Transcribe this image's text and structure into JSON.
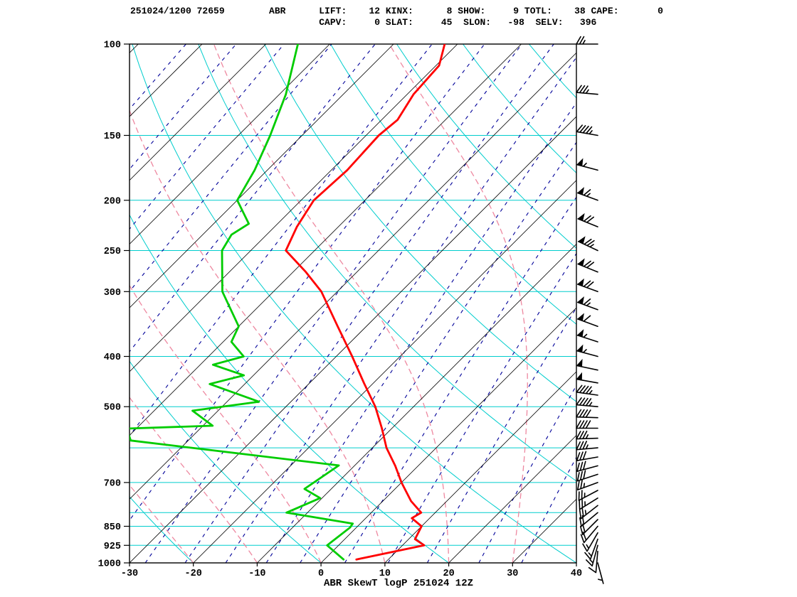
{
  "header": {
    "line1": "251024/1200 72659        ABR      LIFT:    12 KINX:      8 SHOW:     9 TOTL:    38 CAPE:       0",
    "line2": "                                  CAPV:     0 SLAT:     45  SLON:   -98  SELV:   396",
    "fields": {
      "datetime": "251024/1200",
      "station_number": "72659",
      "station_id": "ABR",
      "LIFT": 12,
      "KINX": 8,
      "SHOW": 9,
      "TOTL": 38,
      "CAPE": 0,
      "CAPV": 0,
      "SLAT": 45,
      "SLON": -98,
      "SELV": 396
    }
  },
  "footer": {
    "title": "ABR SkewT logP 251024 12Z"
  },
  "chart_data": {
    "type": "skewt-logp",
    "station": "ABR",
    "valid": "251024 12Z",
    "pressure_axis": {
      "unit": "hPa",
      "scale": "log",
      "min": 100,
      "max": 1000,
      "ticks": [
        100,
        150,
        200,
        250,
        300,
        400,
        500,
        700,
        850,
        925,
        1000
      ]
    },
    "temp_axis": {
      "unit": "degC",
      "min": -30,
      "max": 40,
      "skew_deg": 45,
      "ticks": [
        -30,
        -20,
        -10,
        0,
        10,
        20,
        30,
        40
      ]
    },
    "grid": {
      "isobar_lines": [
        100,
        150,
        200,
        250,
        300,
        400,
        500,
        600,
        700,
        800,
        850,
        925,
        1000
      ],
      "isotherms_c": {
        "min": -120,
        "max": 40,
        "step": 10
      },
      "dry_adiabats_theta_c": {
        "min": -20,
        "max": 180,
        "step": 20
      },
      "moist_adiabats_start_c": {
        "min": -60,
        "max": 40,
        "step": 10
      },
      "mixing_ratio_gkg": [
        0.0001,
        0.0005,
        0.002,
        0.007,
        0.02,
        0.07,
        0.2,
        0.4,
        0.7,
        1.2,
        2,
        3,
        5,
        8,
        12,
        20,
        30
      ],
      "colors": {
        "isobar": "#00cdcd",
        "isotherm": "#000000",
        "dry_adiabat": "#00cdcd",
        "moist_adiabat": "#ee88a0",
        "mixing_ratio": "#000099",
        "frame": "#000000",
        "labels": "#000000"
      }
    },
    "temperature_curve": {
      "color": "#ff0000",
      "points": [
        [
          985,
          5.0
        ],
        [
          925,
          13.4
        ],
        [
          900,
          11.0
        ],
        [
          850,
          10.0
        ],
        [
          820,
          7.2
        ],
        [
          800,
          7.8
        ],
        [
          760,
          4.4
        ],
        [
          700,
          0.0
        ],
        [
          650,
          -3.6
        ],
        [
          600,
          -7.8
        ],
        [
          550,
          -11.6
        ],
        [
          500,
          -16.0
        ],
        [
          450,
          -21.5
        ],
        [
          400,
          -27.5
        ],
        [
          350,
          -34.5
        ],
        [
          300,
          -42.5
        ],
        [
          275,
          -48.0
        ],
        [
          250,
          -54.5
        ],
        [
          225,
          -56.5
        ],
        [
          200,
          -58.0
        ],
        [
          175,
          -57.5
        ],
        [
          150,
          -58.0
        ],
        [
          140,
          -57.5
        ],
        [
          125,
          -59.0
        ],
        [
          110,
          -59.5
        ],
        [
          100,
          -62.0
        ]
      ]
    },
    "dewpoint_curve": {
      "color": "#00cc00",
      "points": [
        [
          985,
          3.0
        ],
        [
          925,
          -1.8
        ],
        [
          855,
          -1.0
        ],
        [
          840,
          -1.2
        ],
        [
          800,
          -13.3
        ],
        [
          750,
          -10.3
        ],
        [
          720,
          -14.2
        ],
        [
          649,
          -12.5
        ],
        [
          581,
          -49.0
        ],
        [
          551,
          -51.5
        ],
        [
          544,
          -38.5
        ],
        [
          509,
          -44.0
        ],
        [
          489,
          -35.0
        ],
        [
          452,
          -45.5
        ],
        [
          435,
          -41.5
        ],
        [
          415,
          -48.0
        ],
        [
          400,
          -44.5
        ],
        [
          375,
          -48.7
        ],
        [
          350,
          -50.0
        ],
        [
          300,
          -58.0
        ],
        [
          250,
          -64.5
        ],
        [
          233,
          -65.5
        ],
        [
          222,
          -64.5
        ],
        [
          200,
          -70.0
        ],
        [
          175,
          -72.0
        ],
        [
          150,
          -75.0
        ],
        [
          125,
          -79.0
        ],
        [
          100,
          -85.0
        ]
      ]
    },
    "wind_barbs": {
      "color": "#000000",
      "units": "kt",
      "levels": [
        {
          "p": 1000,
          "dir": 165,
          "spd": 5
        },
        {
          "p": 950,
          "dir": 185,
          "spd": 10
        },
        {
          "p": 925,
          "dir": 195,
          "spd": 15
        },
        {
          "p": 900,
          "dir": 200,
          "spd": 15
        },
        {
          "p": 875,
          "dir": 210,
          "spd": 15
        },
        {
          "p": 850,
          "dir": 220,
          "spd": 20
        },
        {
          "p": 825,
          "dir": 225,
          "spd": 20
        },
        {
          "p": 800,
          "dir": 230,
          "spd": 20
        },
        {
          "p": 775,
          "dir": 232,
          "spd": 25
        },
        {
          "p": 750,
          "dir": 238,
          "spd": 25
        },
        {
          "p": 725,
          "dir": 242,
          "spd": 25
        },
        {
          "p": 700,
          "dir": 250,
          "spd": 25
        },
        {
          "p": 675,
          "dir": 252,
          "spd": 30
        },
        {
          "p": 650,
          "dir": 255,
          "spd": 30
        },
        {
          "p": 625,
          "dir": 260,
          "spd": 30
        },
        {
          "p": 600,
          "dir": 265,
          "spd": 35
        },
        {
          "p": 575,
          "dir": 268,
          "spd": 35
        },
        {
          "p": 550,
          "dir": 270,
          "spd": 40
        },
        {
          "p": 525,
          "dir": 272,
          "spd": 40
        },
        {
          "p": 500,
          "dir": 275,
          "spd": 45
        },
        {
          "p": 475,
          "dir": 278,
          "spd": 45
        },
        {
          "p": 450,
          "dir": 280,
          "spd": 50
        },
        {
          "p": 425,
          "dir": 282,
          "spd": 50
        },
        {
          "p": 400,
          "dir": 285,
          "spd": 55
        },
        {
          "p": 375,
          "dir": 288,
          "spd": 55
        },
        {
          "p": 350,
          "dir": 290,
          "spd": 60
        },
        {
          "p": 325,
          "dir": 290,
          "spd": 65
        },
        {
          "p": 300,
          "dir": 290,
          "spd": 70
        },
        {
          "p": 275,
          "dir": 292,
          "spd": 70
        },
        {
          "p": 250,
          "dir": 295,
          "spd": 75
        },
        {
          "p": 225,
          "dir": 292,
          "spd": 70
        },
        {
          "p": 200,
          "dir": 290,
          "spd": 65
        },
        {
          "p": 175,
          "dir": 285,
          "spd": 55
        },
        {
          "p": 150,
          "dir": 280,
          "spd": 45
        },
        {
          "p": 125,
          "dir": 275,
          "spd": 35
        },
        {
          "p": 100,
          "dir": 270,
          "spd": 25
        }
      ]
    }
  }
}
